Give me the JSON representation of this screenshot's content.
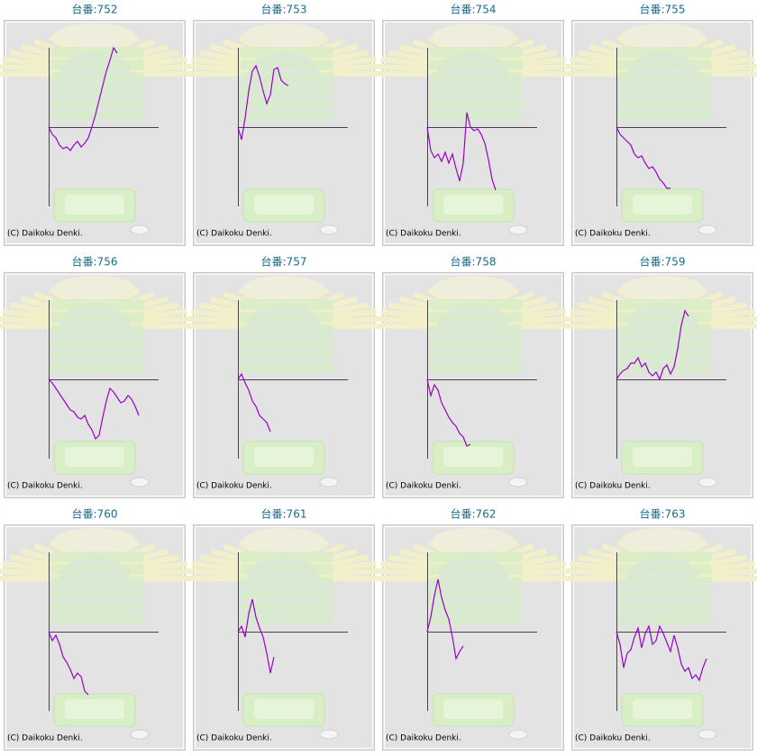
{
  "chart_data": [
    {
      "type": "line",
      "title": "台番:752",
      "footnote": "(C) Daikoku Denki.",
      "color": "#9900cc",
      "xlim": [
        0,
        122
      ],
      "ylim": [
        -88,
        88
      ],
      "values": [
        0,
        -8,
        -12,
        -20,
        -24,
        -22,
        -26,
        -20,
        -16,
        -22,
        -18,
        -12,
        0,
        14,
        30,
        46,
        62,
        74,
        88,
        82
      ]
    },
    {
      "type": "line",
      "title": "台番:753",
      "footnote": "(C) Daikoku Denki.",
      "color": "#9900cc",
      "xlim": [
        0,
        122
      ],
      "ylim": [
        -88,
        88
      ],
      "values": [
        0,
        -14,
        10,
        40,
        62,
        68,
        56,
        40,
        26,
        36,
        64,
        66,
        52,
        48,
        46
      ]
    },
    {
      "type": "line",
      "title": "台番:754",
      "footnote": "(C) Daikoku Denki.",
      "color": "#9900cc",
      "xlim": [
        0,
        122
      ],
      "ylim": [
        -88,
        88
      ],
      "values": [
        0,
        -26,
        -34,
        -30,
        -38,
        -28,
        -40,
        -30,
        -46,
        -60,
        -40,
        16,
        0,
        -4,
        -2,
        -8,
        -18,
        -36,
        -58,
        -70
      ]
    },
    {
      "type": "line",
      "title": "台番:755",
      "footnote": "(C) Daikoku Denki.",
      "color": "#9900cc",
      "xlim": [
        0,
        122
      ],
      "ylim": [
        -88,
        88
      ],
      "values": [
        0,
        -8,
        -12,
        -16,
        -20,
        -30,
        -34,
        -32,
        -40,
        -46,
        -44,
        -50,
        -58,
        -62,
        -68,
        -68
      ]
    },
    {
      "type": "line",
      "title": "台番:756",
      "footnote": "(C) Daikoku Denki.",
      "color": "#9900cc",
      "xlim": [
        0,
        122
      ],
      "ylim": [
        -88,
        88
      ],
      "values": [
        0,
        -4,
        -10,
        -16,
        -22,
        -28,
        -34,
        -36,
        -42,
        -44,
        -40,
        -50,
        -56,
        -66,
        -62,
        -42,
        -24,
        -10,
        -14,
        -20,
        -26,
        -24,
        -18,
        -22,
        -30,
        -40
      ]
    },
    {
      "type": "line",
      "title": "台番:757",
      "footnote": "(C) Daikoku Denki.",
      "color": "#9900cc",
      "xlim": [
        0,
        122
      ],
      "ylim": [
        -88,
        88
      ],
      "values": [
        0,
        6,
        -4,
        -12,
        -24,
        -30,
        -40,
        -44,
        -48,
        -58
      ]
    },
    {
      "type": "line",
      "title": "台番:758",
      "footnote": "(C) Daikoku Denki.",
      "color": "#9900cc",
      "xlim": [
        0,
        122
      ],
      "ylim": [
        -88,
        88
      ],
      "values": [
        0,
        -18,
        -6,
        -12,
        -26,
        -34,
        -42,
        -48,
        -52,
        -60,
        -64,
        -74,
        -72
      ]
    },
    {
      "type": "line",
      "title": "台番:759",
      "footnote": "(C) Daikoku Denki.",
      "color": "#9900cc",
      "xlim": [
        0,
        122
      ],
      "ylim": [
        -88,
        88
      ],
      "values": [
        0,
        6,
        10,
        12,
        18,
        18,
        24,
        14,
        18,
        8,
        4,
        8,
        0,
        12,
        16,
        6,
        14,
        34,
        60,
        76,
        70
      ]
    },
    {
      "type": "line",
      "title": "台番:760",
      "footnote": "(C) Daikoku Denki.",
      "color": "#9900cc",
      "xlim": [
        0,
        122
      ],
      "ylim": [
        -88,
        88
      ],
      "values": [
        0,
        -10,
        -4,
        -14,
        -28,
        -34,
        -42,
        -52,
        -46,
        -50,
        -66,
        -70
      ]
    },
    {
      "type": "line",
      "title": "台番:761",
      "footnote": "(C) Daikoku Denki.",
      "color": "#9900cc",
      "xlim": [
        0,
        122
      ],
      "ylim": [
        -88,
        88
      ],
      "values": [
        0,
        6,
        -6,
        20,
        36,
        16,
        4,
        -6,
        -24,
        -46,
        -28
      ]
    },
    {
      "type": "line",
      "title": "台番:762",
      "footnote": "(C) Daikoku Denki.",
      "color": "#9900cc",
      "xlim": [
        0,
        122
      ],
      "ylim": [
        -88,
        88
      ],
      "values": [
        0,
        16,
        40,
        58,
        38,
        24,
        14,
        -6,
        -30,
        -22,
        -16
      ]
    },
    {
      "type": "line",
      "title": "台番:763",
      "footnote": "(C) Daikoku Denki.",
      "color": "#9900cc",
      "xlim": [
        0,
        122
      ],
      "ylim": [
        -88,
        88
      ],
      "values": [
        0,
        -14,
        -40,
        -24,
        -20,
        -6,
        4,
        -18,
        -2,
        6,
        -14,
        -10,
        6,
        -2,
        -12,
        -22,
        -4,
        -18,
        -36,
        -44,
        -40,
        -52,
        -48,
        -54,
        -40,
        -30
      ]
    }
  ]
}
